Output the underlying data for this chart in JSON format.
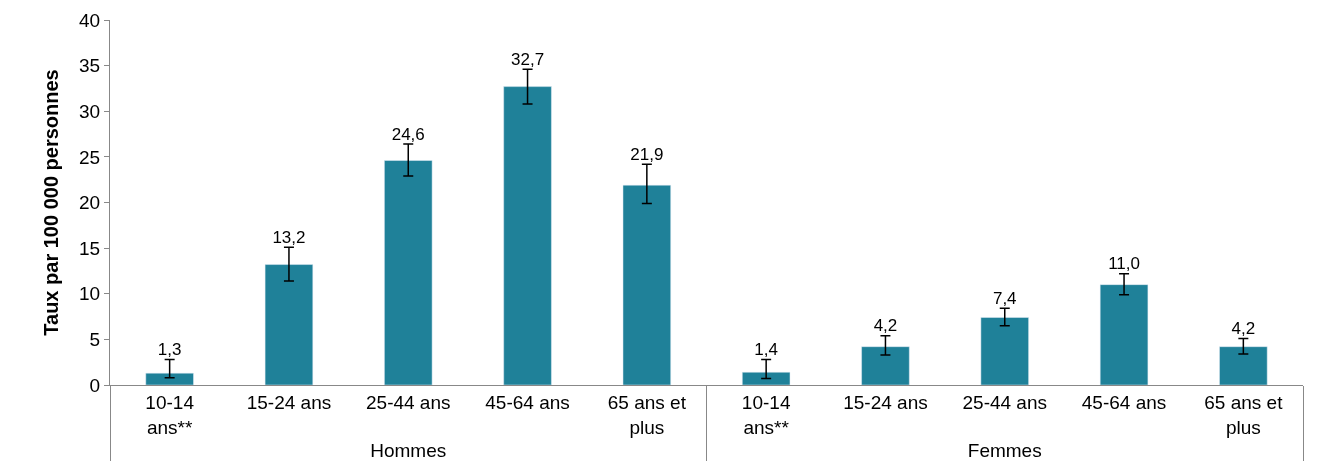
{
  "chart_data": {
    "type": "bar",
    "ylabel": "Taux par 100 000 personnes",
    "categories": [
      "10-14 ans**",
      "15-24 ans",
      "25-44 ans",
      "45-64 ans",
      "65 ans et plus",
      "10-14 ans**",
      "15-24 ans",
      "25-44 ans",
      "45-64 ans",
      "65 ans et plus"
    ],
    "values": [
      1.3,
      13.2,
      24.6,
      32.7,
      21.9,
      1.4,
      4.2,
      7.4,
      11.0,
      4.2
    ],
    "errors": [
      [
        0.8,
        2.8
      ],
      [
        11.4,
        15.1
      ],
      [
        22.9,
        26.4
      ],
      [
        30.8,
        34.6
      ],
      [
        19.9,
        24.2
      ],
      [
        0.7,
        2.8
      ],
      [
        3.3,
        5.4
      ],
      [
        6.5,
        8.4
      ],
      [
        9.9,
        12.2
      ],
      [
        3.4,
        5.1
      ]
    ],
    "value_labels": [
      "1,3",
      "13,2",
      "24,6",
      "32,7",
      "21,9",
      "1,4",
      "4,2",
      "7,4",
      "11,0",
      "4,2"
    ],
    "color": "#1f8199",
    "ylim": [
      0,
      40
    ],
    "yticks": [
      0,
      5,
      10,
      15,
      20,
      25,
      30,
      35,
      40
    ],
    "annotations": [
      "Hommes",
      "Femmes"
    ]
  }
}
